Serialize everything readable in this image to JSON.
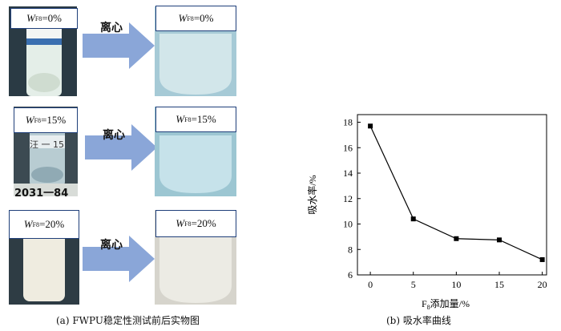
{
  "rows": [
    {
      "label_var": "W",
      "label_sub": "F8",
      "label_value": "=0%",
      "arrow_text": "离心",
      "tube_label": ""
    },
    {
      "label_var": "W",
      "label_sub": "F8",
      "label_value": "=15%",
      "arrow_text": "离心",
      "tube_label": "汪 一 15"
    },
    {
      "label_var": "W",
      "label_sub": "F8",
      "label_value": "=20%",
      "arrow_text": "离心",
      "tube_label": ""
    }
  ],
  "stray_text": "2031一84",
  "caption_a": "(a) FWPU稳定性测试前后实物图",
  "caption_b": "(b) 吸水率曲线",
  "colors": {
    "arrow": "#8aa6d8",
    "label_border": "#1f3f7a",
    "liquid_0": "#d2e6ea",
    "liquid_15": "#c6e2ea",
    "liquid_20": "#ecebe4"
  },
  "chart_data": {
    "type": "line",
    "x": [
      0,
      5,
      10,
      15,
      20
    ],
    "values": [
      17.7,
      10.4,
      8.85,
      8.75,
      7.2
    ],
    "xlabel_main": "F",
    "xlabel_sub": "8",
    "xlabel_rest": "添加量/%",
    "ylabel": "吸水率/%",
    "xticks": [
      "0",
      "5",
      "10",
      "15",
      "20"
    ],
    "yticks": [
      "6",
      "8",
      "10",
      "12",
      "14",
      "16",
      "18"
    ],
    "xlim": [
      -1.5,
      20.5
    ],
    "ylim": [
      6,
      18.6
    ],
    "grid": false,
    "legend": "none"
  }
}
